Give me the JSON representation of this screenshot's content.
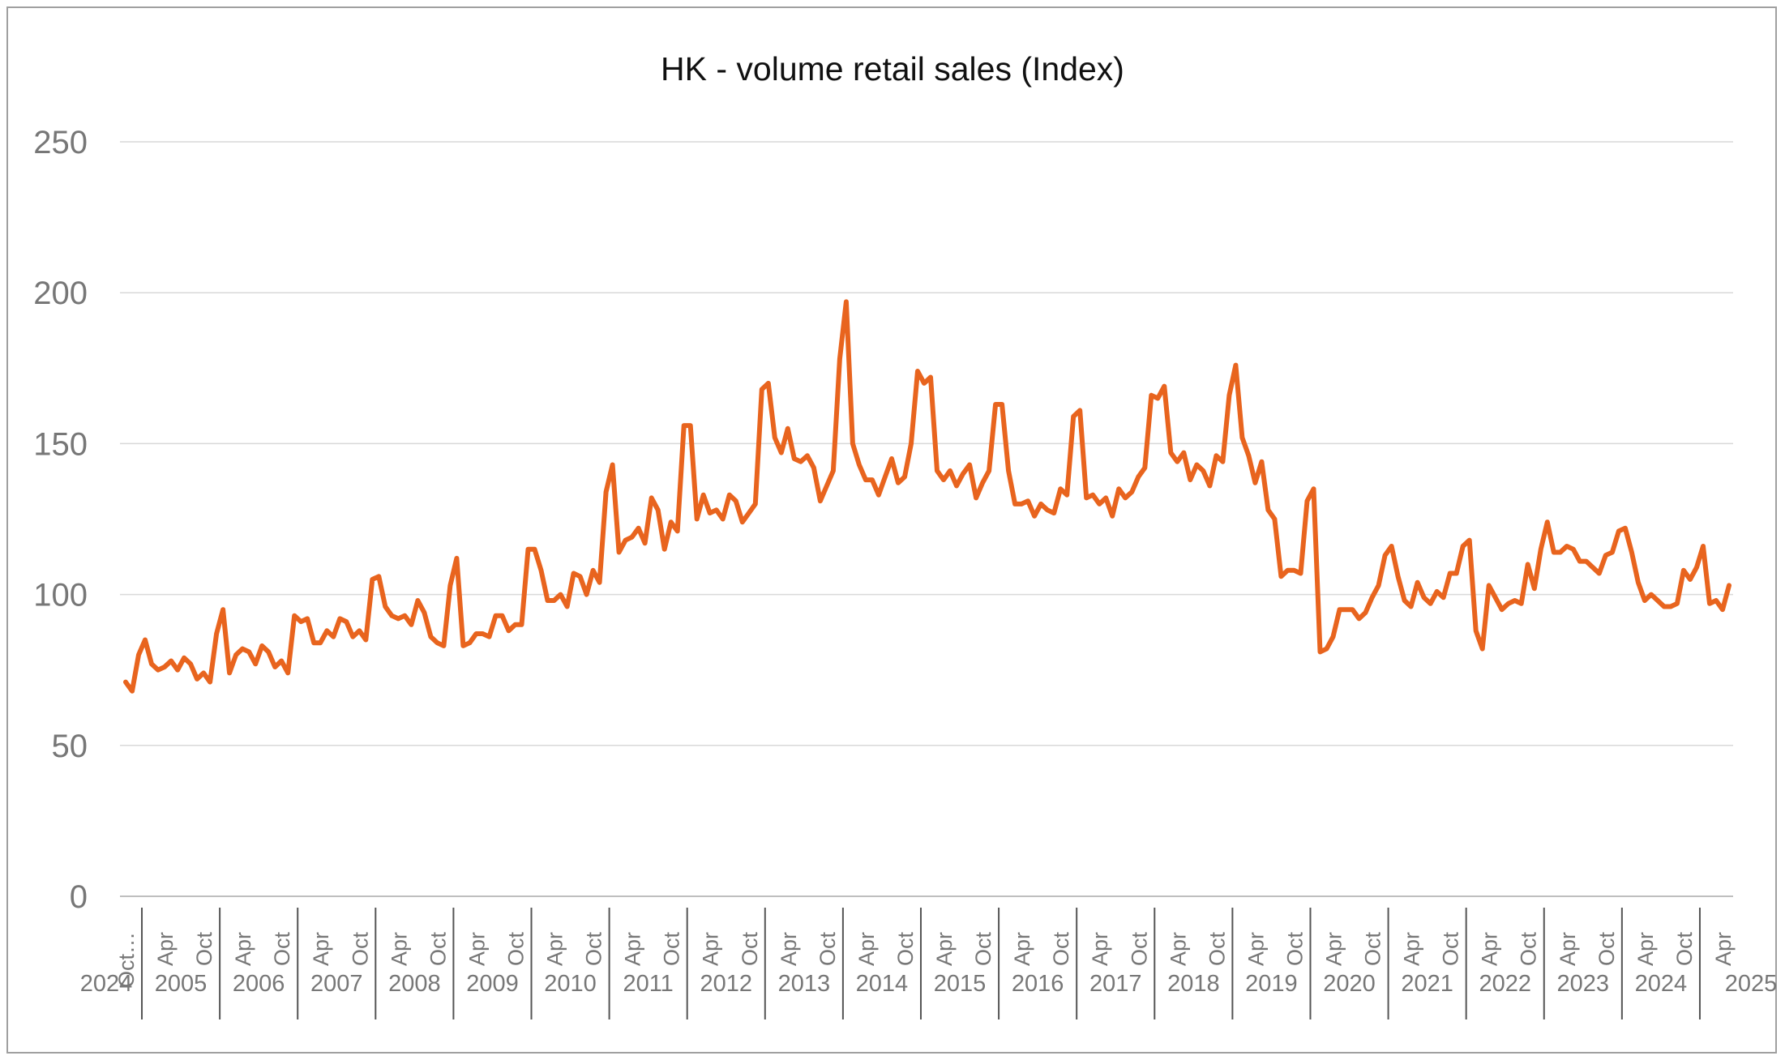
{
  "chart_data": {
    "type": "line",
    "title": "HK - volume retail sales (Index)",
    "xlabel": "",
    "ylabel": "",
    "ylim": [
      0,
      250
    ],
    "yticks": [
      0,
      50,
      100,
      150,
      200,
      250
    ],
    "grid": true,
    "legend": "none",
    "colors": {
      "line": "#e8641e",
      "grid": "#d9d9d9",
      "axis_text": "#777777"
    },
    "x_start": "2004-10",
    "x_end": "2025-05",
    "first_tick_label": "Oct…",
    "first_year_label": "2024",
    "month_labels": [
      "Apr",
      "Oct"
    ],
    "years": [
      "2005",
      "2006",
      "2007",
      "2008",
      "2009",
      "2010",
      "2011",
      "2012",
      "2013",
      "2014",
      "2015",
      "2016",
      "2017",
      "2018",
      "2019",
      "2020",
      "2021",
      "2022",
      "2023",
      "2024",
      "2025"
    ],
    "series": [
      {
        "values": [
          71,
          68,
          80,
          85,
          77,
          75,
          76,
          78,
          75,
          79,
          77,
          72,
          74,
          71,
          87,
          95,
          74,
          80,
          82,
          81,
          77,
          83,
          81,
          76,
          78,
          74,
          93,
          91,
          92,
          84,
          84,
          88,
          86,
          92,
          91,
          86,
          88,
          85,
          105,
          106,
          96,
          93,
          92,
          93,
          90,
          98,
          94,
          86,
          84,
          83,
          103,
          112,
          83,
          84,
          87,
          87,
          86,
          93,
          93,
          88,
          90,
          90,
          115,
          115,
          108,
          98,
          98,
          100,
          96,
          107,
          106,
          100,
          108,
          104,
          134,
          143,
          114,
          118,
          119,
          122,
          117,
          132,
          128,
          115,
          124,
          121,
          156,
          156,
          125,
          133,
          127,
          128,
          125,
          133,
          131,
          124,
          127,
          130,
          168,
          170,
          152,
          147,
          155,
          145,
          144,
          146,
          142,
          131,
          136,
          141,
          178,
          197,
          150,
          143,
          138,
          138,
          133,
          139,
          145,
          137,
          139,
          150,
          174,
          170,
          172,
          141,
          138,
          141,
          136,
          140,
          143,
          132,
          137,
          141,
          163,
          163,
          141,
          130,
          130,
          131,
          126,
          130,
          128,
          127,
          135,
          133,
          159,
          161,
          132,
          133,
          130,
          132,
          126,
          135,
          132,
          134,
          139,
          142,
          166,
          165,
          169,
          147,
          144,
          147,
          138,
          143,
          141,
          136,
          146,
          144,
          166,
          176,
          152,
          146,
          137,
          144,
          128,
          125,
          106,
          108,
          108,
          107,
          131,
          135,
          81,
          82,
          86,
          95,
          95,
          95,
          92,
          94,
          99,
          103,
          113,
          116,
          106,
          98,
          96,
          104,
          99,
          97,
          101,
          99,
          107,
          107,
          116,
          118,
          88,
          82,
          103,
          99,
          95,
          97,
          98,
          97,
          110,
          102,
          115,
          124,
          114,
          114,
          116,
          115,
          111,
          111,
          109,
          107,
          113,
          114,
          121,
          122,
          114,
          104,
          98,
          100,
          98,
          96,
          96,
          97,
          108,
          105,
          109,
          116,
          97,
          98,
          95,
          103
        ]
      }
    ]
  }
}
